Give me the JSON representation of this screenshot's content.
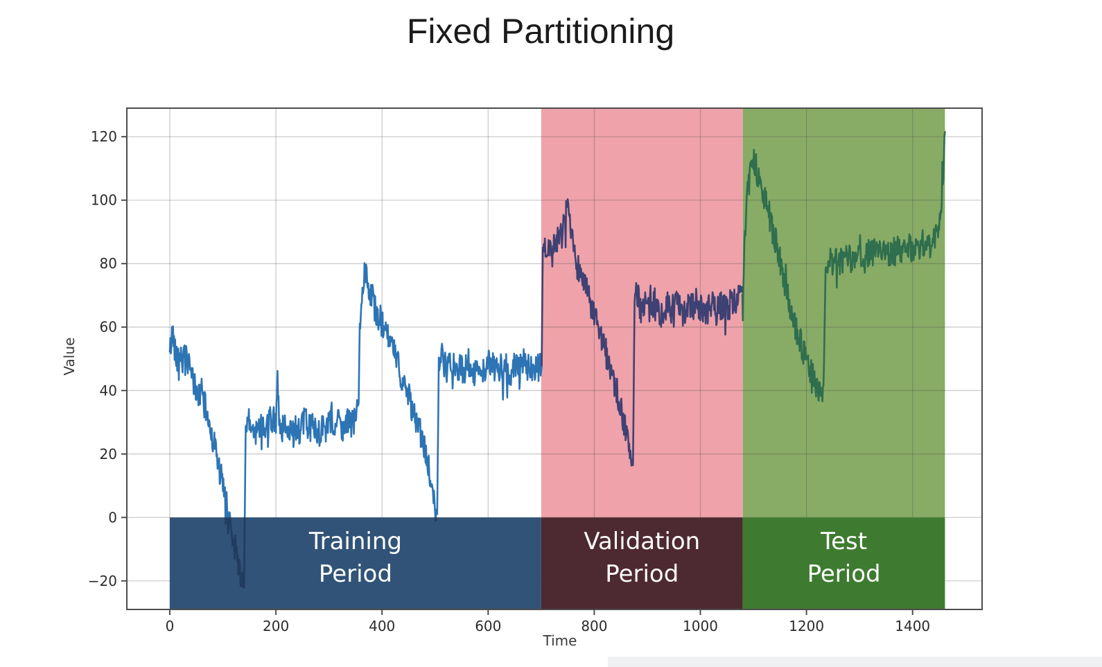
{
  "title": "Fixed Partitioning",
  "chart_data": {
    "type": "line",
    "title": "Fixed Partitioning",
    "xlabel": "Time",
    "ylabel": "Value",
    "xlim": [
      -81,
      1531
    ],
    "ylim": [
      -29,
      129
    ],
    "grid": true,
    "legend": "none",
    "x_ticks": [
      0,
      200,
      400,
      600,
      800,
      1000,
      1200,
      1400
    ],
    "x_tick_labels": [
      "0",
      "200",
      "400",
      "600",
      "800",
      "1000",
      "1200",
      "1400"
    ],
    "y_ticks": [
      -20,
      0,
      20,
      40,
      60,
      80,
      100,
      120
    ],
    "y_tick_labels": [
      "−20",
      "0",
      "20",
      "40",
      "60",
      "80",
      "100",
      "120"
    ],
    "axis_color": "#4d4d4d",
    "grid_color": "rgba(70,70,70,0.30)",
    "tick_label_color": "#2b2b2b",
    "noise_amplitude": 4.6,
    "bands": [
      {
        "name": "training",
        "label_line1": "Training",
        "label_line2": "Period",
        "t_start": 0,
        "t_end": 700,
        "label_band_color": "#315377",
        "span_color": null,
        "text_color": "#ffffff"
      },
      {
        "name": "validation",
        "label_line1": "Validation",
        "label_line2": "Period",
        "t_start": 700,
        "t_end": 1080,
        "label_band_color": "#4d2931",
        "span_color": "#efa2a9",
        "text_color": "#ffffff"
      },
      {
        "name": "test",
        "label_line1": "Test",
        "label_line2": "Period",
        "t_start": 1080,
        "t_end": 1461,
        "label_band_color": "#3e7b30",
        "span_color": "#88ab66",
        "text_color": "#ffffff"
      }
    ],
    "series": [
      {
        "name": "training_segment",
        "color": "#2d74b4",
        "anchors": [
          [
            0,
            52
          ],
          [
            3,
            56
          ],
          [
            6,
            58
          ],
          [
            10,
            53
          ],
          [
            15,
            50
          ],
          [
            20,
            52
          ],
          [
            25,
            49
          ],
          [
            30,
            51
          ],
          [
            36,
            47
          ],
          [
            42,
            44
          ],
          [
            48,
            41
          ],
          [
            54,
            38
          ],
          [
            60,
            40
          ],
          [
            66,
            35
          ],
          [
            72,
            31
          ],
          [
            78,
            27
          ],
          [
            84,
            23
          ],
          [
            90,
            18
          ],
          [
            96,
            13
          ],
          [
            102,
            8
          ],
          [
            108,
            3
          ],
          [
            114,
            -2
          ],
          [
            120,
            -7
          ],
          [
            126,
            -12
          ],
          [
            132,
            -17
          ],
          [
            137,
            -20
          ],
          [
            140,
            -22
          ],
          [
            143,
            28
          ],
          [
            148,
            30
          ],
          [
            155,
            28
          ],
          [
            162,
            26
          ],
          [
            170,
            30
          ],
          [
            178,
            27
          ],
          [
            186,
            29
          ],
          [
            194,
            31
          ],
          [
            200,
            30
          ],
          [
            203,
            46
          ],
          [
            207,
            29
          ],
          [
            215,
            27
          ],
          [
            223,
            30
          ],
          [
            231,
            26
          ],
          [
            239,
            29
          ],
          [
            247,
            27
          ],
          [
            255,
            31
          ],
          [
            263,
            28
          ],
          [
            271,
            30
          ],
          [
            279,
            26
          ],
          [
            287,
            29
          ],
          [
            295,
            27
          ],
          [
            303,
            30
          ],
          [
            311,
            28
          ],
          [
            319,
            31
          ],
          [
            327,
            28
          ],
          [
            335,
            30
          ],
          [
            343,
            29
          ],
          [
            350,
            31
          ],
          [
            356,
            36
          ],
          [
            358,
            62
          ],
          [
            361,
            67
          ],
          [
            364,
            72
          ],
          [
            367,
            77
          ],
          [
            370,
            79
          ],
          [
            373,
            75
          ],
          [
            377,
            72
          ],
          [
            382,
            69
          ],
          [
            387,
            66
          ],
          [
            392,
            64
          ],
          [
            398,
            62
          ],
          [
            404,
            59
          ],
          [
            410,
            57
          ],
          [
            416,
            55
          ],
          [
            422,
            52
          ],
          [
            428,
            49
          ],
          [
            434,
            46
          ],
          [
            440,
            43
          ],
          [
            446,
            40
          ],
          [
            452,
            37
          ],
          [
            458,
            34
          ],
          [
            464,
            31
          ],
          [
            470,
            28
          ],
          [
            476,
            24
          ],
          [
            482,
            20
          ],
          [
            488,
            15
          ],
          [
            493,
            10
          ],
          [
            498,
            5
          ],
          [
            502,
            2
          ],
          [
            504,
            1
          ],
          [
            507,
            50
          ],
          [
            512,
            51
          ],
          [
            518,
            48
          ],
          [
            524,
            46
          ],
          [
            530,
            49
          ],
          [
            536,
            47
          ],
          [
            542,
            45
          ],
          [
            548,
            48
          ],
          [
            554,
            46
          ],
          [
            562,
            49
          ],
          [
            570,
            47
          ],
          [
            578,
            45
          ],
          [
            586,
            48
          ],
          [
            594,
            46
          ],
          [
            602,
            49
          ],
          [
            610,
            47
          ],
          [
            618,
            46
          ],
          [
            626,
            48
          ],
          [
            634,
            47
          ],
          [
            642,
            45
          ],
          [
            650,
            48
          ],
          [
            658,
            46
          ],
          [
            666,
            49
          ],
          [
            674,
            47
          ],
          [
            682,
            46
          ],
          [
            690,
            48
          ],
          [
            696,
            47
          ],
          [
            701,
            48
          ]
        ]
      },
      {
        "name": "validation_segment",
        "color": "#3e4173",
        "anchors": [
          [
            701,
            48
          ],
          [
            703,
            85
          ],
          [
            706,
            86
          ],
          [
            710,
            84
          ],
          [
            714,
            87
          ],
          [
            718,
            85
          ],
          [
            722,
            83
          ],
          [
            726,
            87
          ],
          [
            730,
            88
          ],
          [
            734,
            86
          ],
          [
            738,
            89
          ],
          [
            742,
            91
          ],
          [
            746,
            95
          ],
          [
            749,
            97
          ],
          [
            753,
            92
          ],
          [
            757,
            88
          ],
          [
            761,
            84
          ],
          [
            765,
            81
          ],
          [
            770,
            79
          ],
          [
            778,
            75
          ],
          [
            786,
            71
          ],
          [
            794,
            66
          ],
          [
            802,
            62
          ],
          [
            810,
            58
          ],
          [
            818,
            54
          ],
          [
            826,
            50
          ],
          [
            834,
            45
          ],
          [
            842,
            40
          ],
          [
            849,
            35
          ],
          [
            856,
            30
          ],
          [
            862,
            25
          ],
          [
            867,
            21
          ],
          [
            871,
            18
          ],
          [
            873,
            17
          ],
          [
            876,
            68
          ],
          [
            880,
            70
          ],
          [
            888,
            66
          ],
          [
            896,
            68
          ],
          [
            904,
            65
          ],
          [
            912,
            67
          ],
          [
            920,
            66
          ],
          [
            928,
            63
          ],
          [
            936,
            67
          ],
          [
            944,
            65
          ],
          [
            952,
            68
          ],
          [
            960,
            66
          ],
          [
            968,
            63
          ],
          [
            976,
            67
          ],
          [
            984,
            66
          ],
          [
            992,
            68
          ],
          [
            1000,
            66
          ],
          [
            1010,
            64
          ],
          [
            1020,
            67
          ],
          [
            1030,
            65
          ],
          [
            1040,
            67
          ],
          [
            1050,
            66
          ],
          [
            1060,
            68
          ],
          [
            1070,
            69
          ],
          [
            1079,
            70
          ]
        ]
      },
      {
        "name": "test_segment",
        "color": "#2f6e4e",
        "anchors": [
          [
            1079,
            70
          ],
          [
            1082,
            80
          ],
          [
            1085,
            92
          ],
          [
            1088,
            102
          ],
          [
            1091,
            109
          ],
          [
            1094,
            113
          ],
          [
            1097,
            115
          ],
          [
            1101,
            112
          ],
          [
            1105,
            110
          ],
          [
            1110,
            107
          ],
          [
            1116,
            103
          ],
          [
            1122,
            100
          ],
          [
            1128,
            97
          ],
          [
            1134,
            92
          ],
          [
            1140,
            88
          ],
          [
            1146,
            84
          ],
          [
            1152,
            79
          ],
          [
            1158,
            74
          ],
          [
            1164,
            70
          ],
          [
            1170,
            66
          ],
          [
            1178,
            61
          ],
          [
            1186,
            57
          ],
          [
            1194,
            52
          ],
          [
            1202,
            48
          ],
          [
            1210,
            45
          ],
          [
            1218,
            42
          ],
          [
            1226,
            40
          ],
          [
            1232,
            38
          ],
          [
            1236,
            78
          ],
          [
            1240,
            80
          ],
          [
            1250,
            81
          ],
          [
            1262,
            80
          ],
          [
            1274,
            82
          ],
          [
            1286,
            81
          ],
          [
            1298,
            83
          ],
          [
            1310,
            82
          ],
          [
            1322,
            84
          ],
          [
            1334,
            83
          ],
          [
            1346,
            85
          ],
          [
            1358,
            83
          ],
          [
            1370,
            84
          ],
          [
            1382,
            85
          ],
          [
            1394,
            85
          ],
          [
            1406,
            84
          ],
          [
            1418,
            86
          ],
          [
            1430,
            86
          ],
          [
            1440,
            87
          ],
          [
            1448,
            89
          ],
          [
            1453,
            95
          ],
          [
            1456,
            104
          ],
          [
            1459,
            114
          ],
          [
            1461,
            122
          ]
        ]
      }
    ]
  }
}
